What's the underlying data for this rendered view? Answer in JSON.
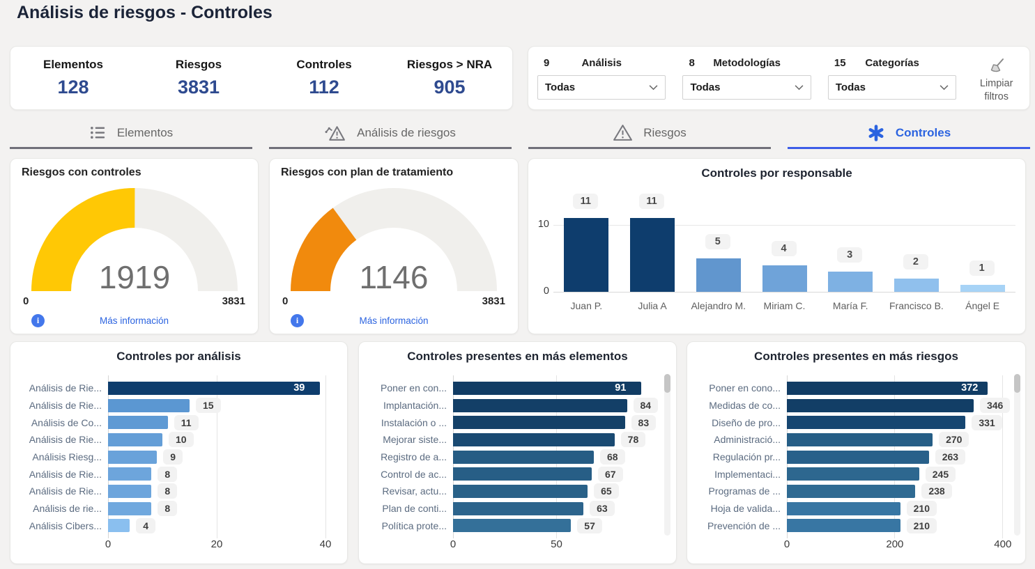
{
  "page": {
    "title": "Análisis de riesgos - Controles",
    "accent_color": "#2B63E0",
    "background": "#F3F2F1"
  },
  "kpis": [
    {
      "label": "Elementos",
      "value": "128"
    },
    {
      "label": "Riesgos",
      "value": "3831"
    },
    {
      "label": "Controles",
      "value": "112"
    },
    {
      "label": "Riesgos > NRA",
      "value": "905"
    }
  ],
  "filters": {
    "items": [
      {
        "count": "9",
        "label": "Análisis",
        "value": "Todas"
      },
      {
        "count": "8",
        "label": "Metodologías",
        "value": "Todas"
      },
      {
        "count": "15",
        "label": "Categorías",
        "value": "Todas"
      }
    ],
    "clear_label": "Limpiar filtros"
  },
  "tabs": [
    {
      "label": "Elementos",
      "icon": "list-icon",
      "active": false
    },
    {
      "label": "Análisis de riesgos",
      "icon": "risk-analysis-icon",
      "active": false
    },
    {
      "label": "Riesgos",
      "icon": "warning-icon",
      "active": false
    },
    {
      "label": "Controles",
      "icon": "asterisk-icon",
      "active": true
    }
  ],
  "chart_data": [
    {
      "type": "gauge",
      "title": "Riesgos con controles",
      "value": 1919,
      "min": 0,
      "max": 3831,
      "color": "#FFC805",
      "track_color": "#F0EFEC",
      "footer_link": "Más información"
    },
    {
      "type": "gauge",
      "title": "Riesgos con plan de tratamiento",
      "value": 1146,
      "min": 0,
      "max": 3831,
      "color": "#F18A0D",
      "track_color": "#F0EFEC",
      "footer_link": "Más información"
    },
    {
      "type": "bar",
      "title": "Controles por responsable",
      "categories": [
        "Juan P.",
        "Julia A",
        "Alejandro M.",
        "Miriam C.",
        "María F.",
        "Francisco B.",
        "Ángel E"
      ],
      "values": [
        11,
        11,
        5,
        4,
        3,
        2,
        1
      ],
      "colors": [
        "#0E3D6D",
        "#0E3D6D",
        "#6196CE",
        "#6FA3D9",
        "#7EB1E3",
        "#90C0ED",
        "#A7D3F6"
      ],
      "y_ticks": [
        0,
        10
      ],
      "ylim": [
        0,
        14.7
      ],
      "grid": true,
      "legend": false
    },
    {
      "type": "hbar",
      "title": "Controles por análisis",
      "categories": [
        "Análisis de Rie...",
        "Análisis de Rie...",
        "Análisis de Co...",
        "Análisis de Rie...",
        "Análisis Riesg...",
        "Análisis de Rie...",
        "Análisis de Rie...",
        "Análisis de rie...",
        "Análisis Cibers..."
      ],
      "values": [
        39,
        15,
        11,
        10,
        9,
        8,
        8,
        8,
        4
      ],
      "colors": [
        "#0E3D6D",
        "#5B97D2",
        "#5F9AD4",
        "#649ED7",
        "#69A2DA",
        "#6DA5DC",
        "#6DA5DC",
        "#70A8DE",
        "#8ABFEF"
      ],
      "x_ticks": [
        0,
        20,
        40
      ],
      "xlim": [
        0,
        40
      ],
      "first_value_inside": true,
      "grid": true,
      "legend": false
    },
    {
      "type": "hbar",
      "title": "Controles presentes en más elementos",
      "categories": [
        "Poner en con...",
        "Implantación...",
        "Instalación o ...",
        "Mejorar siste...",
        "Registro de a...",
        "Control de ac...",
        "Revisar, actu...",
        "Plan de conti...",
        "Política prote..."
      ],
      "values": [
        91,
        84,
        83,
        78,
        68,
        67,
        65,
        63,
        57
      ],
      "colors": [
        "#113C64",
        "#133F67",
        "#144168",
        "#1A4A72",
        "#265C84",
        "#275E86",
        "#296188",
        "#2C648C",
        "#347099"
      ],
      "x_ticks": [
        0,
        50
      ],
      "xlim": [
        0,
        101
      ],
      "first_value_inside": true,
      "scrollbar": true,
      "grid": true,
      "legend": false
    },
    {
      "type": "hbar",
      "title": "Controles presentes en más riesgos",
      "categories": [
        "Poner en cono...",
        "Medidas de co...",
        "Diseño de pro...",
        "Administració...",
        "Regulación pr...",
        "Implementaci...",
        "Programas de ...",
        "Hoja de valida...",
        "Prevención de ..."
      ],
      "values": [
        372,
        346,
        331,
        270,
        263,
        245,
        238,
        210,
        210
      ],
      "colors": [
        "#113C64",
        "#123E66",
        "#164671",
        "#265E86",
        "#28608A",
        "#2D678F",
        "#2F6A92",
        "#3876A3",
        "#3876A3"
      ],
      "x_ticks": [
        0,
        200,
        400
      ],
      "xlim": [
        0,
        408
      ],
      "first_value_inside": true,
      "scrollbar": true,
      "grid": true,
      "legend": false
    }
  ]
}
